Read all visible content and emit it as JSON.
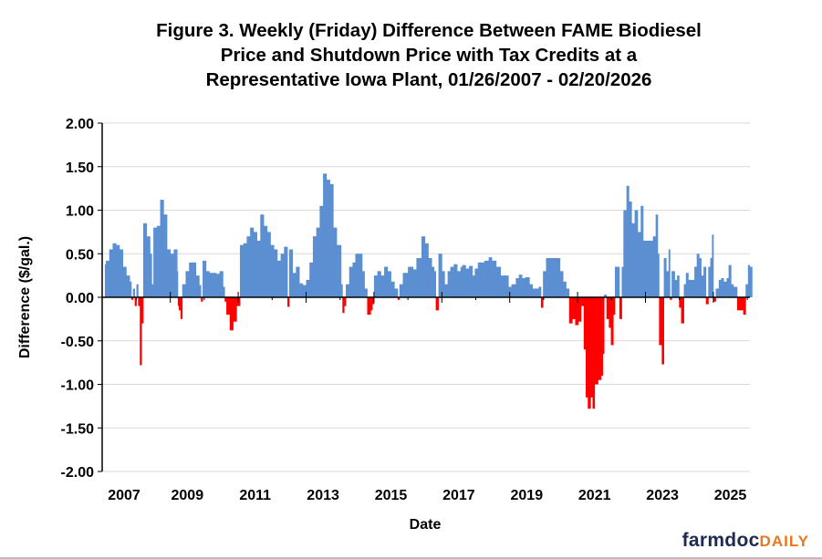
{
  "chart_data": {
    "type": "bar",
    "title": "Figure 3. Weekly (Friday) Difference Between FAME Biodiesel Price and Shutdown Price with Tax Credits at a Representative Iowa Plant, 01/26/2007 - 02/20/2026",
    "title_lines": [
      "Figure 3. Weekly (Friday) Difference Between FAME Biodiesel",
      "Price and Shutdown Price with Tax Credits at a",
      "Representative Iowa Plant, 01/26/2007 - 02/20/2026"
    ],
    "xlabel": "Date",
    "ylabel": "Difference ($/gal.)",
    "ylim": [
      -2.0,
      2.0
    ],
    "xlim": [
      2007.07,
      2026.14
    ],
    "y_ticks": [
      "2.00",
      "1.50",
      "1.00",
      "0.50",
      "0.00",
      "-0.50",
      "-1.00",
      "-1.50",
      "-2.00"
    ],
    "x_tick_labels": [
      "2007",
      "2009",
      "2011",
      "2013",
      "2015",
      "2017",
      "2019",
      "2021",
      "2023",
      "2025"
    ],
    "grid": "horizontal",
    "legend": "none",
    "colors": {
      "positive": "#5b8fd2",
      "negative": "#ff0000",
      "grid": "#d9d9d9",
      "axis": "#000000"
    },
    "x": [
      2007.07,
      2007.1,
      2007.2,
      2007.3,
      2007.4,
      2007.5,
      2007.6,
      2007.7,
      2007.8,
      2007.85,
      2007.9,
      2007.95,
      2008.0,
      2008.05,
      2008.1,
      2008.15,
      2008.2,
      2008.3,
      2008.4,
      2008.45,
      2008.5,
      2008.6,
      2008.7,
      2008.8,
      2008.9,
      2009.0,
      2009.1,
      2009.2,
      2009.22,
      2009.25,
      2009.3,
      2009.35,
      2009.45,
      2009.55,
      2009.65,
      2009.75,
      2009.85,
      2009.9,
      2009.95,
      2010.05,
      2010.15,
      2010.25,
      2010.35,
      2010.45,
      2010.55,
      2010.6,
      2010.65,
      2010.75,
      2010.85,
      2010.95,
      2011.05,
      2011.15,
      2011.25,
      2011.35,
      2011.45,
      2011.55,
      2011.65,
      2011.75,
      2011.85,
      2011.95,
      2012.05,
      2012.15,
      2012.25,
      2012.35,
      2012.45,
      2012.5,
      2012.6,
      2012.7,
      2012.8,
      2012.9,
      2013.0,
      2013.1,
      2013.2,
      2013.3,
      2013.4,
      2013.5,
      2013.6,
      2013.7,
      2013.8,
      2013.9,
      2014.0,
      2014.03,
      2014.07,
      2014.12,
      2014.17,
      2014.27,
      2014.37,
      2014.45,
      2014.55,
      2014.65,
      2014.72,
      2014.8,
      2014.9,
      2014.95,
      2015.0,
      2015.1,
      2015.2,
      2015.3,
      2015.4,
      2015.5,
      2015.6,
      2015.7,
      2015.75,
      2015.85,
      2016.0,
      2016.15,
      2016.25,
      2016.4,
      2016.5,
      2016.6,
      2016.7,
      2016.77,
      2016.82,
      2016.9,
      2017.0,
      2017.08,
      2017.17,
      2017.25,
      2017.35,
      2017.45,
      2017.55,
      2017.6,
      2017.7,
      2017.8,
      2017.9,
      2017.97,
      2018.06,
      2018.15,
      2018.25,
      2018.38,
      2018.47,
      2018.6,
      2018.73,
      2018.82,
      2018.96,
      2019.05,
      2019.18,
      2019.27,
      2019.36,
      2019.45,
      2019.58,
      2019.67,
      2019.76,
      2019.85,
      2019.92,
      2019.98,
      2020.07,
      2020.17,
      2020.3,
      2020.4,
      2020.48,
      2020.57,
      2020.66,
      2020.75,
      2020.84,
      2020.93,
      2021.02,
      2021.1,
      2021.18,
      2021.24,
      2021.3,
      2021.38,
      2021.44,
      2021.5,
      2021.6,
      2021.69,
      2021.74,
      2021.78,
      2021.85,
      2021.92,
      2021.98,
      2022.05,
      2022.1,
      2022.19,
      2022.23,
      2022.3,
      2022.35,
      2022.44,
      2022.51,
      2022.59,
      2022.68,
      2022.77,
      2022.86,
      2022.93,
      2023.04,
      2023.16,
      2023.22,
      2023.3,
      2023.36,
      2023.4,
      2023.48,
      2023.54,
      2023.61,
      2023.68,
      2023.72,
      2023.77,
      2023.86,
      2023.93,
      2023.99,
      2024.05,
      2024.13,
      2024.19,
      2024.26,
      2024.35,
      2024.44,
      2024.51,
      2024.58,
      2024.64,
      2024.71,
      2024.78,
      2024.85,
      2024.91,
      2024.96,
      2025.0,
      2025.07,
      2025.16,
      2025.23,
      2025.3,
      2025.39,
      2025.45,
      2025.52,
      2025.59,
      2025.65,
      2025.7,
      2025.79,
      2025.88,
      2025.95,
      2026.02,
      2026.07
    ],
    "y": [
      0.38,
      0.42,
      0.55,
      0.62,
      0.6,
      0.55,
      0.35,
      0.25,
      0.18,
      -0.03,
      0.1,
      -0.1,
      0.15,
      -0.1,
      -0.78,
      -0.3,
      0.85,
      0.7,
      0.5,
      0.15,
      0.8,
      0.82,
      1.12,
      0.95,
      0.55,
      0.5,
      0.55,
      0.3,
      -0.1,
      -0.15,
      -0.25,
      0.15,
      0.3,
      0.4,
      0.4,
      0.25,
      0.14,
      -0.05,
      0.42,
      0.3,
      0.28,
      0.28,
      0.27,
      0.3,
      0.12,
      -0.05,
      -0.2,
      -0.38,
      -0.28,
      -0.1,
      0.6,
      0.62,
      0.7,
      0.8,
      0.75,
      0.65,
      0.95,
      0.82,
      0.75,
      0.6,
      0.55,
      0.42,
      0.5,
      0.58,
      -0.11,
      0.55,
      0.28,
      0.35,
      0.16,
      0.14,
      0.2,
      0.4,
      0.7,
      0.8,
      1.05,
      1.42,
      1.35,
      1.3,
      0.8,
      0.6,
      0.6,
      0.15,
      -0.18,
      -0.1,
      0.15,
      0.35,
      0.4,
      0.5,
      0.5,
      0.3,
      0.1,
      -0.2,
      -0.15,
      -0.08,
      0.25,
      0.3,
      0.25,
      0.35,
      0.3,
      0.18,
      0.1,
      -0.03,
      0.15,
      0.28,
      0.35,
      0.32,
      0.45,
      0.7,
      0.62,
      0.45,
      0.35,
      0.3,
      -0.15,
      0.5,
      0.3,
      0.15,
      0.3,
      0.35,
      0.38,
      0.3,
      0.35,
      0.37,
      0.33,
      0.36,
      0.25,
      0.33,
      0.4,
      0.4,
      0.42,
      0.46,
      0.42,
      0.35,
      0.25,
      0.25,
      0.12,
      0.15,
      0.22,
      0.26,
      0.22,
      0.23,
      0.15,
      0.1,
      0.1,
      0.12,
      -0.12,
      0.3,
      0.45,
      0.45,
      0.45,
      0.45,
      0.3,
      0.18,
      0.1,
      -0.3,
      -0.25,
      -0.32,
      -0.28,
      -0.1,
      -0.6,
      -1.15,
      -1.28,
      -1.15,
      -1.28,
      -1.0,
      -0.95,
      -0.9,
      -0.65,
      0.03,
      -0.25,
      -0.35,
      -0.55,
      -0.2,
      0.35,
      0.35,
      -0.25,
      0.35,
      1.0,
      1.28,
      1.1,
      0.85,
      1.0,
      0.75,
      1.05,
      0.65,
      0.65,
      0.65,
      0.7,
      0.95,
      0.5,
      -0.55,
      -0.77,
      0.45,
      0.3,
      0.55,
      -0.03,
      0.3,
      0.2,
      0.25,
      -0.12,
      -0.3,
      0.15,
      0.28,
      0.2,
      0.2,
      0.35,
      0.5,
      0.45,
      0.25,
      0.35,
      -0.08,
      0.35,
      0.45,
      0.72,
      -0.05,
      0.1,
      0.2,
      0.22,
      0.18,
      0.22,
      0.37,
      0.15,
      0.12,
      0.12,
      -0.15,
      -0.15,
      -0.2,
      0.15,
      0.37,
      0.35
    ]
  },
  "logo": {
    "part1": "farmdoc",
    "part2": "DAILY"
  }
}
